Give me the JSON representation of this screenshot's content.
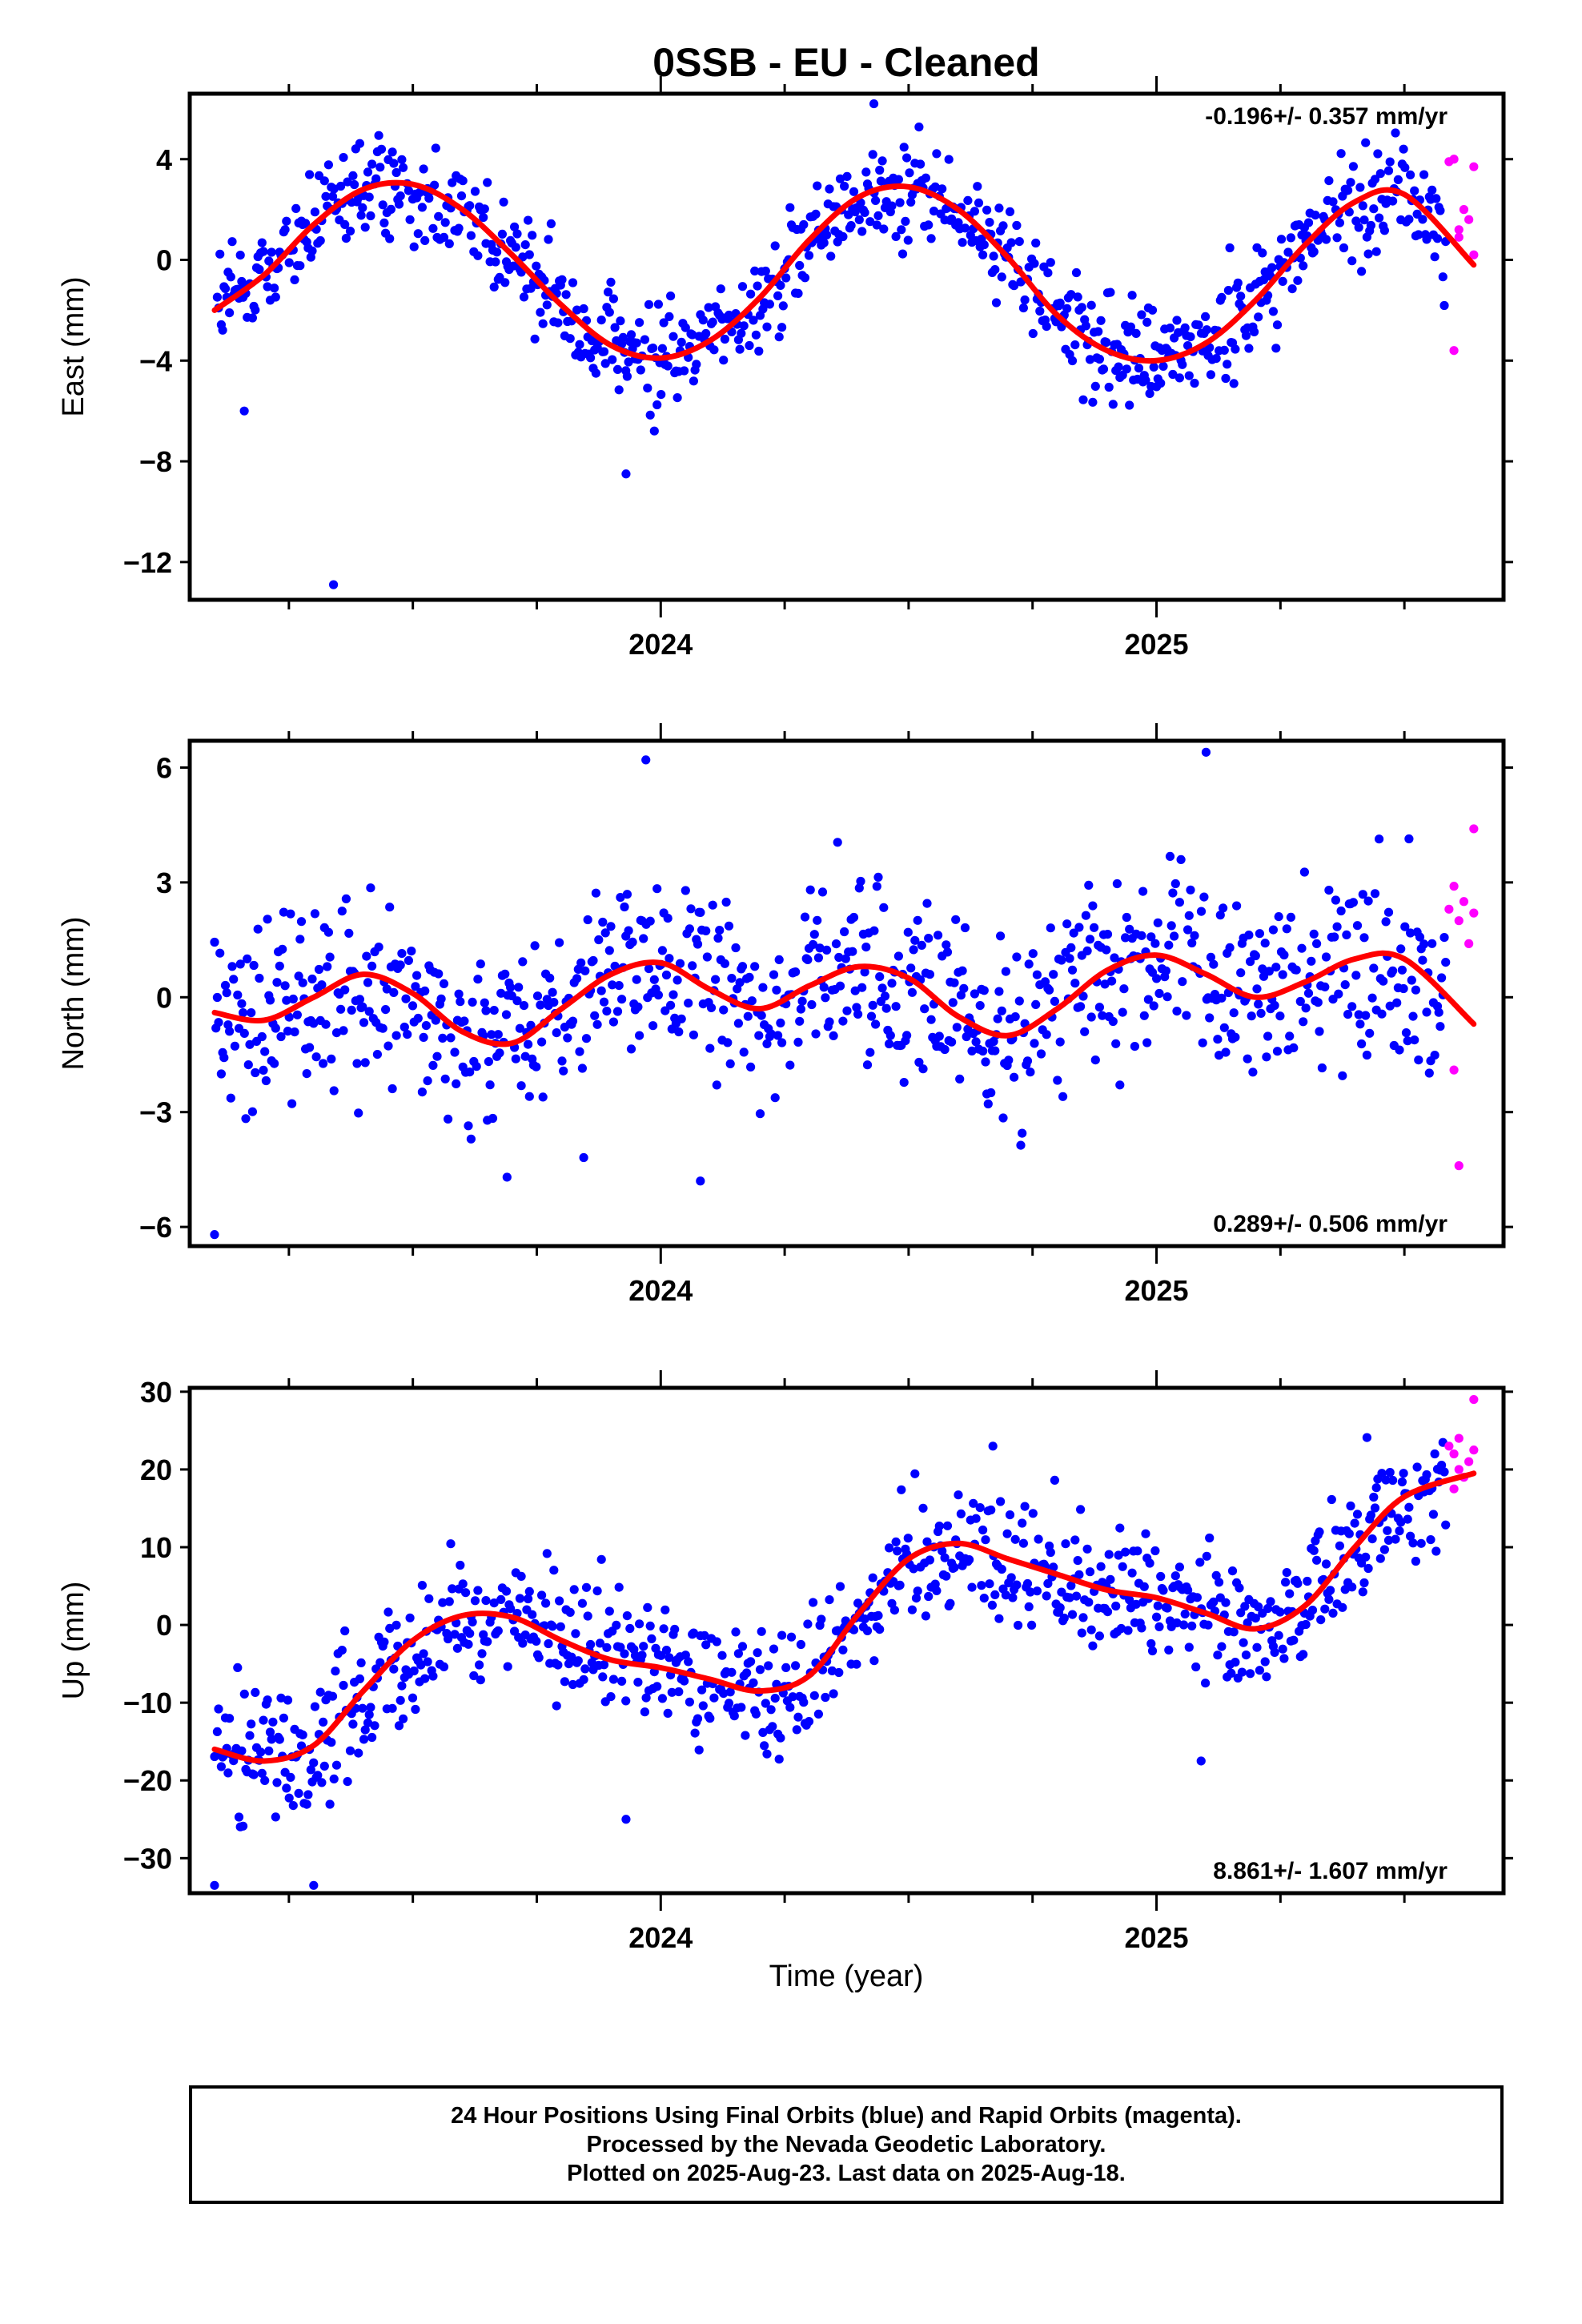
{
  "title": "0SSB  - EU - Cleaned",
  "xlabel": "Time (year)",
  "footer": {
    "line1": "24 Hour Positions Using Final Orbits (blue) and Rapid Orbits (magenta).",
    "line2": "Processed by the Nevada Geodetic Laboratory.",
    "line3": "Plotted on 2025-Aug-23. Last data on 2025-Aug-18."
  },
  "colors": {
    "final": "#0000ff",
    "rapid": "#ff00ff",
    "fit": "#ff0000"
  },
  "chart_data": [
    {
      "type": "scatter",
      "ylabel": "East (mm)",
      "rate_label": "-0.196+/- 0.357 mm/yr",
      "rate_position": "top-right",
      "xlim": [
        2023.05,
        2025.7
      ],
      "ylim": [
        -13.5,
        6.6
      ],
      "x_tick_labels": [
        "2024",
        "2025"
      ],
      "y_ticks": [
        -12,
        -8,
        -4,
        0,
        4
      ],
      "y_tick_labels": [
        "−12",
        "−8",
        "−4",
        "0",
        "4"
      ],
      "fit": {
        "x": [
          2023.1,
          2023.2,
          2023.3,
          2023.4,
          2023.5,
          2023.6,
          2023.7,
          2023.8,
          2023.9,
          2024.0,
          2024.1,
          2024.2,
          2024.3,
          2024.4,
          2024.5,
          2024.6,
          2024.7,
          2024.8,
          2024.9,
          2025.0,
          2025.1,
          2025.2,
          2025.3,
          2025.4,
          2025.5,
          2025.64
        ],
        "y": [
          -2.0,
          -0.6,
          1.4,
          2.8,
          3.0,
          2.0,
          0.2,
          -1.8,
          -3.4,
          -3.9,
          -3.2,
          -1.5,
          0.8,
          2.5,
          2.9,
          2.0,
          0.1,
          -2.2,
          -3.6,
          -4.0,
          -3.3,
          -1.6,
          0.6,
          2.3,
          2.6,
          -0.2
        ]
      },
      "outliers": [
        {
          "x": 2023.34,
          "y": -12.9
        },
        {
          "x": 2023.93,
          "y": -8.5
        },
        {
          "x": 2023.16,
          "y": -6.0
        },
        {
          "x": 2024.43,
          "y": 6.2
        }
      ],
      "rapid": {
        "x": [
          2025.59,
          2025.6,
          2025.61,
          2025.62,
          2025.6,
          2025.63,
          2025.64,
          2025.64,
          2025.61
        ],
        "y": [
          3.9,
          4.0,
          1.2,
          2.0,
          -3.6,
          1.6,
          3.7,
          0.2,
          0.9
        ]
      }
    },
    {
      "type": "scatter",
      "ylabel": "North (mm)",
      "rate_label": "0.289+/- 0.506 mm/yr",
      "rate_position": "bottom-right",
      "xlim": [
        2023.05,
        2025.7
      ],
      "ylim": [
        -6.5,
        6.7
      ],
      "x_tick_labels": [
        "2024",
        "2025"
      ],
      "y_ticks": [
        -6,
        -3,
        0,
        3,
        6
      ],
      "y_tick_labels": [
        "−6",
        "−3",
        "0",
        "3",
        "6"
      ],
      "fit": {
        "x": [
          2023.1,
          2023.2,
          2023.3,
          2023.4,
          2023.5,
          2023.6,
          2023.7,
          2023.8,
          2023.9,
          2024.0,
          2024.1,
          2024.2,
          2024.3,
          2024.4,
          2024.5,
          2024.6,
          2024.7,
          2024.8,
          2024.9,
          2025.0,
          2025.1,
          2025.2,
          2025.3,
          2025.4,
          2025.5,
          2025.64
        ],
        "y": [
          -0.4,
          -0.6,
          0.0,
          0.6,
          0.1,
          -0.9,
          -1.2,
          -0.3,
          0.6,
          0.9,
          0.2,
          -0.3,
          0.3,
          0.8,
          0.5,
          -0.5,
          -1.0,
          -0.3,
          0.7,
          1.1,
          0.6,
          0.0,
          0.4,
          1.0,
          1.0,
          -0.7
        ]
      },
      "outliers": [
        {
          "x": 2023.1,
          "y": -6.2
        },
        {
          "x": 2023.97,
          "y": 6.2
        },
        {
          "x": 2025.1,
          "y": 6.4
        },
        {
          "x": 2024.08,
          "y": -4.8
        },
        {
          "x": 2023.69,
          "y": -4.7
        }
      ],
      "rapid": {
        "x": [
          2025.59,
          2025.6,
          2025.61,
          2025.62,
          2025.6,
          2025.63,
          2025.64,
          2025.64,
          2025.61
        ],
        "y": [
          2.3,
          2.9,
          2.0,
          2.5,
          -1.9,
          1.4,
          4.4,
          2.2,
          -4.4
        ]
      }
    },
    {
      "type": "scatter",
      "ylabel": "Up (mm)",
      "rate_label": "8.861+/- 1.607 mm/yr",
      "rate_position": "bottom-right",
      "xlim": [
        2023.05,
        2025.7
      ],
      "ylim": [
        -34.5,
        30.5
      ],
      "x_tick_labels": [
        "2024",
        "2025"
      ],
      "y_ticks": [
        -30,
        -20,
        -10,
        0,
        10,
        20,
        30
      ],
      "y_tick_labels": [
        "−30",
        "−20",
        "−10",
        "0",
        "10",
        "20",
        "30"
      ],
      "fit": {
        "x": [
          2023.1,
          2023.2,
          2023.3,
          2023.4,
          2023.5,
          2023.6,
          2023.7,
          2023.8,
          2023.9,
          2024.0,
          2024.1,
          2024.2,
          2024.3,
          2024.4,
          2024.5,
          2024.6,
          2024.7,
          2024.8,
          2024.9,
          2025.0,
          2025.1,
          2025.2,
          2025.3,
          2025.4,
          2025.5,
          2025.64
        ],
        "y": [
          -16.0,
          -17.5,
          -15.5,
          -8.5,
          -2.0,
          1.2,
          1.0,
          -2.0,
          -4.5,
          -5.5,
          -7.0,
          -8.5,
          -6.5,
          1.5,
          8.5,
          10.5,
          8.5,
          6.5,
          4.5,
          3.5,
          1.5,
          -0.5,
          2.5,
          10.0,
          16.5,
          19.5
        ]
      },
      "outliers": [
        {
          "x": 2023.1,
          "y": -33.5
        },
        {
          "x": 2023.3,
          "y": -33.5
        },
        {
          "x": 2023.93,
          "y": -25.0
        },
        {
          "x": 2024.67,
          "y": 23.0
        },
        {
          "x": 2025.09,
          "y": -17.5
        }
      ],
      "rapid": {
        "x": [
          2025.59,
          2025.6,
          2025.61,
          2025.62,
          2025.6,
          2025.63,
          2025.64,
          2025.64,
          2025.61
        ],
        "y": [
          23.0,
          22.0,
          20.0,
          19.0,
          17.5,
          21.0,
          29.0,
          22.5,
          24.0
        ]
      }
    }
  ]
}
